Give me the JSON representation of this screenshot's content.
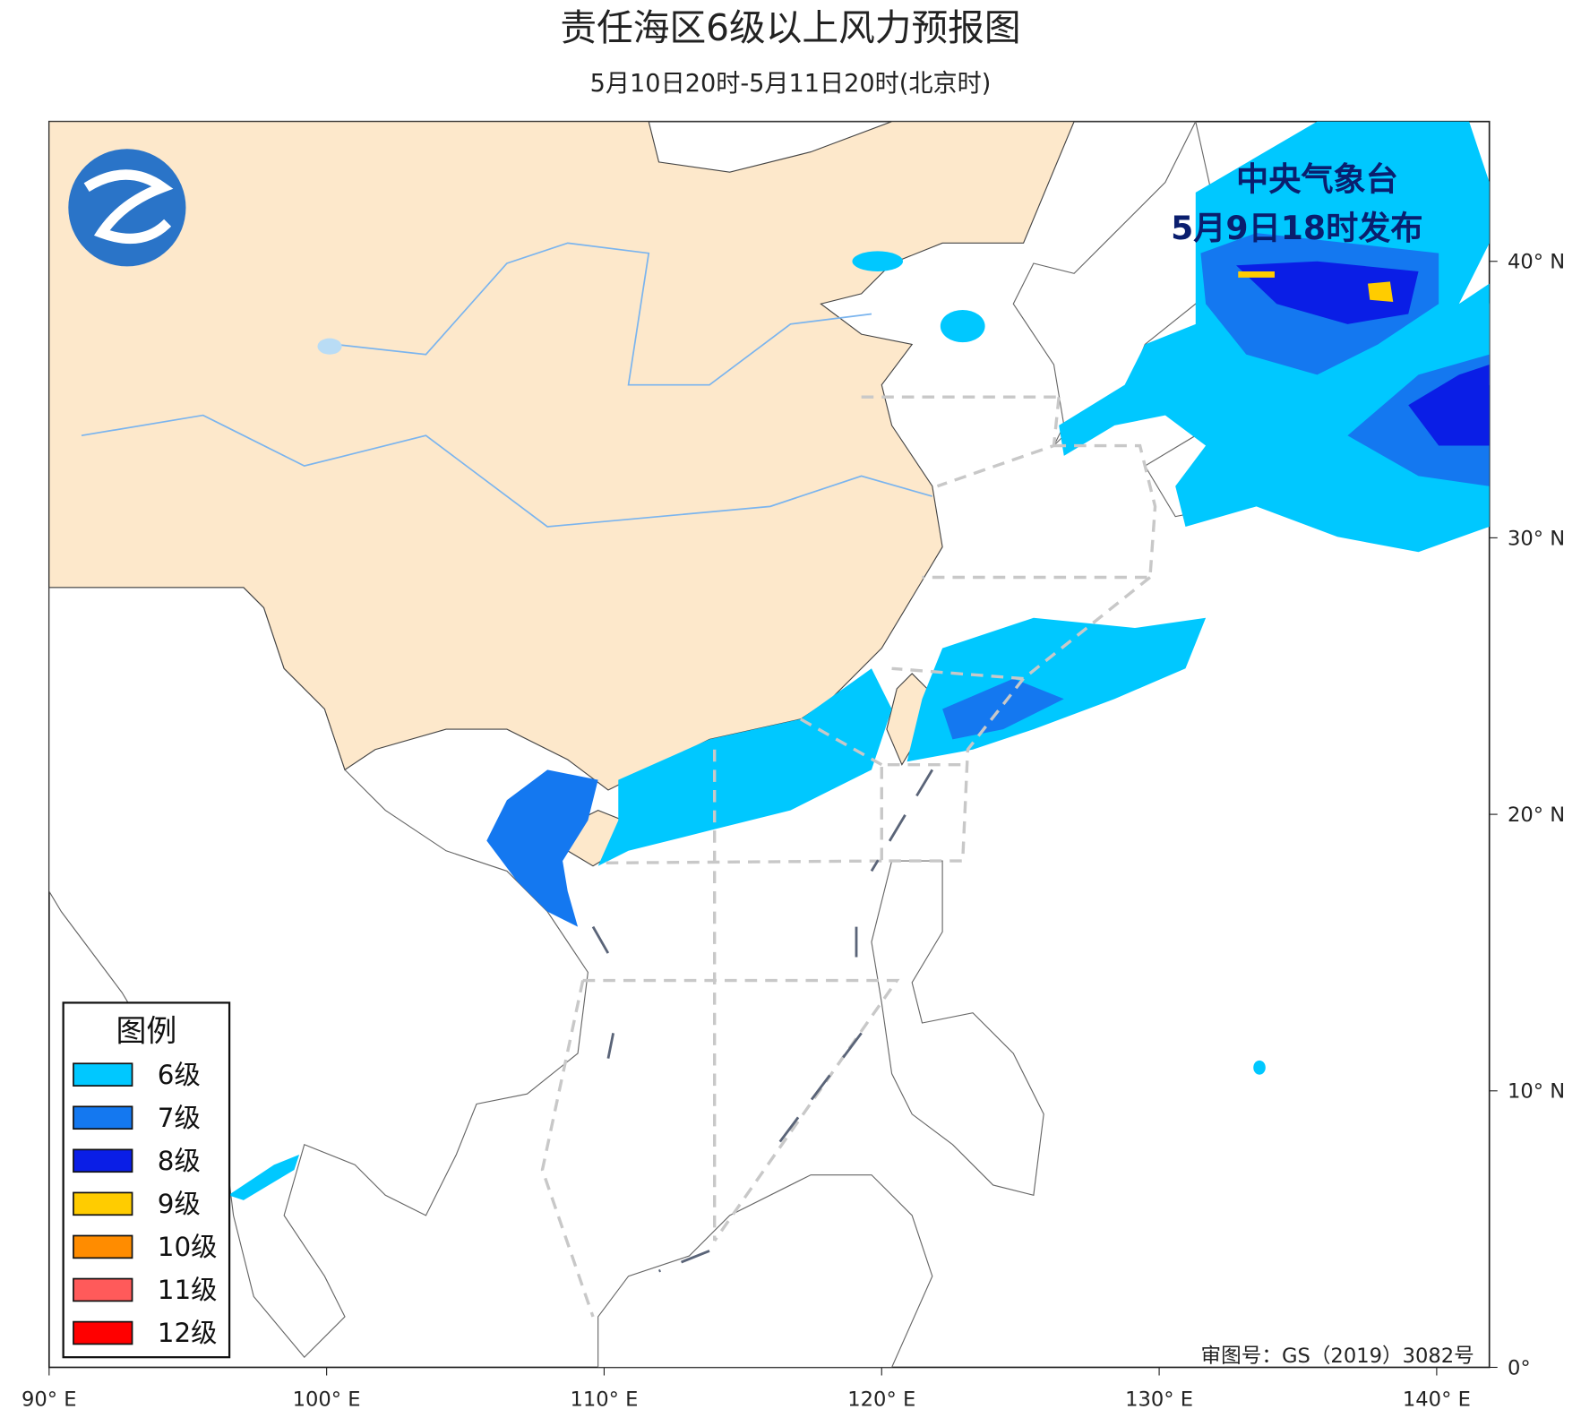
{
  "header": {
    "title": "责任海区6级以上风力预报图",
    "subtitle": "5月10日20时-5月11日20时(北京时)"
  },
  "issuer": {
    "name": "中央气象台",
    "time": "5月9日18时发布"
  },
  "approval": "审图号：GS（2019）3082号",
  "legend": {
    "title": "图例",
    "items": [
      {
        "label": "6级",
        "color": "#00c8ff"
      },
      {
        "label": "7级",
        "color": "#1478f0"
      },
      {
        "label": "8级",
        "color": "#0a1ee6"
      },
      {
        "label": "9级",
        "color": "#ffcc00"
      },
      {
        "label": "10级",
        "color": "#ff8c00"
      },
      {
        "label": "11级",
        "color": "#ff5a5a"
      },
      {
        "label": "12级",
        "color": "#ff0000"
      }
    ]
  },
  "lon_ticks": [
    {
      "value": 90,
      "label": "90° E"
    },
    {
      "value": 100,
      "label": "100° E"
    },
    {
      "value": 110,
      "label": "110° E"
    },
    {
      "value": 120,
      "label": "120° E"
    },
    {
      "value": 130,
      "label": "130° E"
    },
    {
      "value": 140,
      "label": "140° E"
    }
  ],
  "lat_ticks": [
    {
      "value": 0,
      "label": "0°"
    },
    {
      "value": 10,
      "label": "10° N"
    },
    {
      "value": 20,
      "label": "20° N"
    },
    {
      "value": 30,
      "label": "30° N"
    },
    {
      "value": 40,
      "label": "40° N"
    }
  ]
}
